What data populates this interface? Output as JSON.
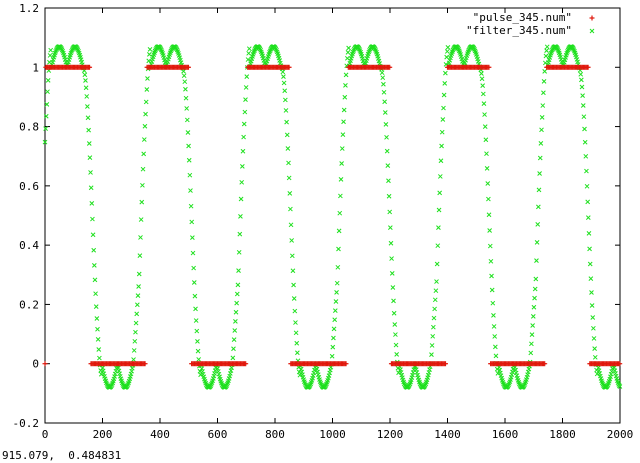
{
  "status_bar": {
    "coordinate_readout": "915.079,  0.484831"
  },
  "colors": {
    "pulse": "#e0180c",
    "filter": "#1ee01e",
    "frame": "#000000",
    "background": "#ffffff"
  },
  "chart_data": {
    "type": "scatter",
    "title": "",
    "xlabel": "",
    "ylabel": "",
    "xlim": [
      0,
      2000
    ],
    "ylim": [
      -0.2,
      1.2
    ],
    "x_ticks": [
      "0",
      "200",
      "400",
      "600",
      "800",
      "1000",
      "1200",
      "1400",
      "1600",
      "1800",
      "2000"
    ],
    "y_ticks": [
      "1.2",
      "1",
      "0.8",
      "0.6",
      "0.4",
      "0.2",
      "0",
      "-0.2"
    ],
    "grid": false,
    "legend_position": "top-right",
    "series": [
      {
        "name": "\"pulse_345.num\"",
        "marker": "+",
        "color": "#e0180c",
        "description_points": "pulse train, period 345, alternating 1 and 0",
        "segments": [
          {
            "x": [
              0,
              0
            ],
            "y": 0
          },
          {
            "x": [
              3,
              155
            ],
            "y": 1
          },
          {
            "x": [
              160,
              350
            ],
            "y": 0
          },
          {
            "x": [
              355,
              500
            ],
            "y": 1
          },
          {
            "x": [
              510,
              700
            ],
            "y": 0
          },
          {
            "x": [
              705,
              850
            ],
            "y": 1
          },
          {
            "x": [
              855,
              1050
            ],
            "y": 0
          },
          {
            "x": [
              1055,
              1200
            ],
            "y": 1
          },
          {
            "x": [
              1205,
              1395
            ],
            "y": 0
          },
          {
            "x": [
              1400,
              1545
            ],
            "y": 1
          },
          {
            "x": [
              1550,
              1740
            ],
            "y": 0
          },
          {
            "x": [
              1745,
              1890
            ],
            "y": 1
          },
          {
            "x": [
              1895,
              2000
            ],
            "y": 0
          }
        ]
      },
      {
        "name": "\"filter_345.num\"",
        "marker": "x",
        "color": "#1ee01e",
        "peaks": [
          {
            "x": 30,
            "y": 1.07
          },
          {
            "x": 80,
            "y": 1.07
          },
          {
            "x": 375,
            "y": 1.07
          },
          {
            "x": 425,
            "y": 1.07
          },
          {
            "x": 720,
            "y": 1.07
          },
          {
            "x": 770,
            "y": 1.07
          },
          {
            "x": 1065,
            "y": 1.07
          },
          {
            "x": 1115,
            "y": 1.07
          },
          {
            "x": 1410,
            "y": 1.07
          },
          {
            "x": 1460,
            "y": 1.07
          },
          {
            "x": 1755,
            "y": 1.07
          },
          {
            "x": 1805,
            "y": 1.07
          }
        ],
        "troughs": [
          {
            "x": 200,
            "y": -0.08
          },
          {
            "x": 250,
            "y": -0.08
          },
          {
            "x": 545,
            "y": -0.08
          },
          {
            "x": 595,
            "y": -0.08
          },
          {
            "x": 890,
            "y": -0.08
          },
          {
            "x": 940,
            "y": -0.08
          },
          {
            "x": 1235,
            "y": -0.08
          },
          {
            "x": 1285,
            "y": -0.08
          },
          {
            "x": 1580,
            "y": -0.08
          },
          {
            "x": 1630,
            "y": -0.08
          },
          {
            "x": 1925,
            "y": -0.08
          },
          {
            "x": 1975,
            "y": -0.08
          }
        ]
      }
    ]
  }
}
